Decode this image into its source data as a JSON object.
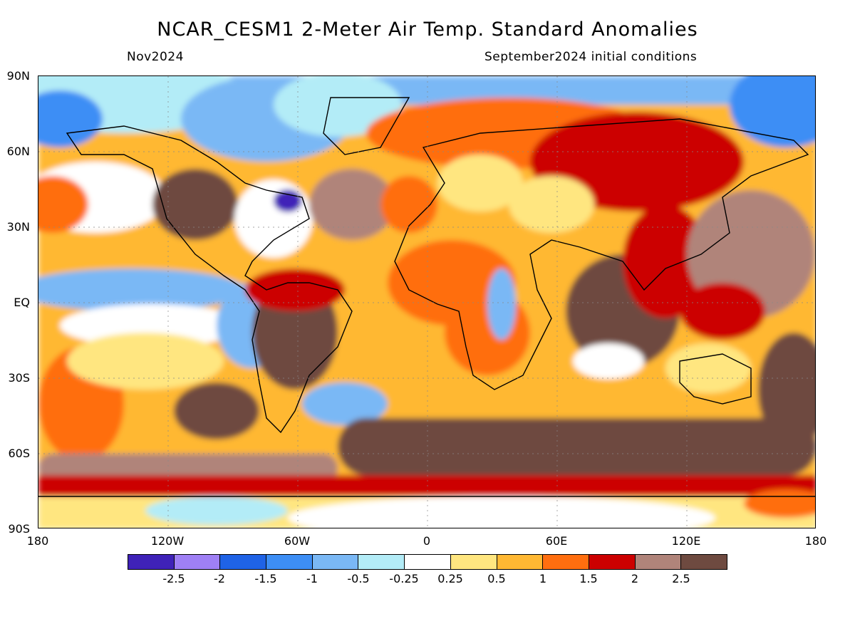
{
  "header": {
    "title": "NCAR_CESM1 2-Meter Air Temp. Standard Anomalies",
    "valid_month": "Nov2024",
    "init_conditions": "September2024 initial conditions"
  },
  "axes": {
    "lat_labels": [
      "90N",
      "60N",
      "30N",
      "EQ",
      "30S",
      "60S",
      "90S"
    ],
    "lon_labels": [
      "180",
      "120W",
      "60W",
      "0",
      "60E",
      "120E",
      "180"
    ],
    "lat_range": [
      -90,
      90
    ],
    "lon_range": [
      -180,
      180
    ],
    "grid": "dotted"
  },
  "colorbar": {
    "colors": [
      "#3f22b8",
      "#9f80f5",
      "#1f63e6",
      "#3d8ef5",
      "#7ab8f5",
      "#b3ecf7",
      "#ffffff",
      "#ffe680",
      "#ffb833",
      "#ff6e0f",
      "#cc0000",
      "#b0847a",
      "#6e4a40"
    ],
    "labels": [
      "-2.5",
      "-2",
      "-1.5",
      "-1",
      "-0.5",
      "-0.25",
      "0.25",
      "0.5",
      "1",
      "1.5",
      "2",
      "2.5"
    ]
  }
}
